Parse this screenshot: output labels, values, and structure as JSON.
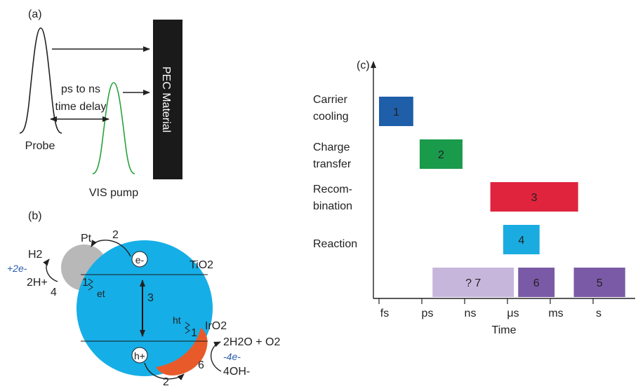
{
  "panel_a": {
    "label": "(a)",
    "pec_material": "PEC Material",
    "delay_line1": "ps to ns",
    "delay_line2": "time delay",
    "probe": "Probe",
    "vis_pump": "VIS pump"
  },
  "panel_b": {
    "label": "(b)",
    "pt": "Pt",
    "tio2": "TiO2",
    "iro2": "IrO2",
    "h2": "H2",
    "plus_2e": "+2e-",
    "two_h_plus": "2H+",
    "e_minus": "e-",
    "h_plus": "h+",
    "et": "et",
    "ht": "ht",
    "h2o_o2": "2H2O + O2",
    "minus_4e": "-4e-",
    "four_oh": "4OH-",
    "step_labels": [
      "2",
      "4",
      "1",
      "3",
      "1",
      "6",
      "2"
    ]
  },
  "panel_c": {
    "label": "(c)",
    "x_axis_label": "Time",
    "x_ticks": [
      "fs",
      "ps",
      "ns",
      "μs",
      "ms",
      "s"
    ],
    "row_labels": [
      [
        "Carrier",
        "cooling"
      ],
      [
        "Charge",
        "transfer"
      ],
      [
        "Recom-",
        "bination"
      ],
      [
        "Reaction"
      ]
    ],
    "bars": [
      {
        "label": "1",
        "color": "#1f5ea8",
        "start": 0.0,
        "end": 0.8,
        "row": 0
      },
      {
        "label": "2",
        "color": "#1a9a4b",
        "start": 0.95,
        "end": 1.95,
        "row": 1
      },
      {
        "label": "3",
        "color": "#e0243e",
        "start": 2.6,
        "end": 4.65,
        "row": 2
      },
      {
        "label": "4",
        "color": "#1aace0",
        "start": 2.9,
        "end": 3.75,
        "row": 3
      },
      {
        "label": "? 7",
        "color": "#c7b6dc",
        "start": 1.25,
        "end": 3.15,
        "row": 4
      },
      {
        "label": "6",
        "color": "#7a5aa6",
        "start": 3.25,
        "end": 4.1,
        "row": 4
      },
      {
        "label": "5",
        "color": "#7a5aa6",
        "start": 4.55,
        "end": 5.75,
        "row": 4
      }
    ]
  }
}
